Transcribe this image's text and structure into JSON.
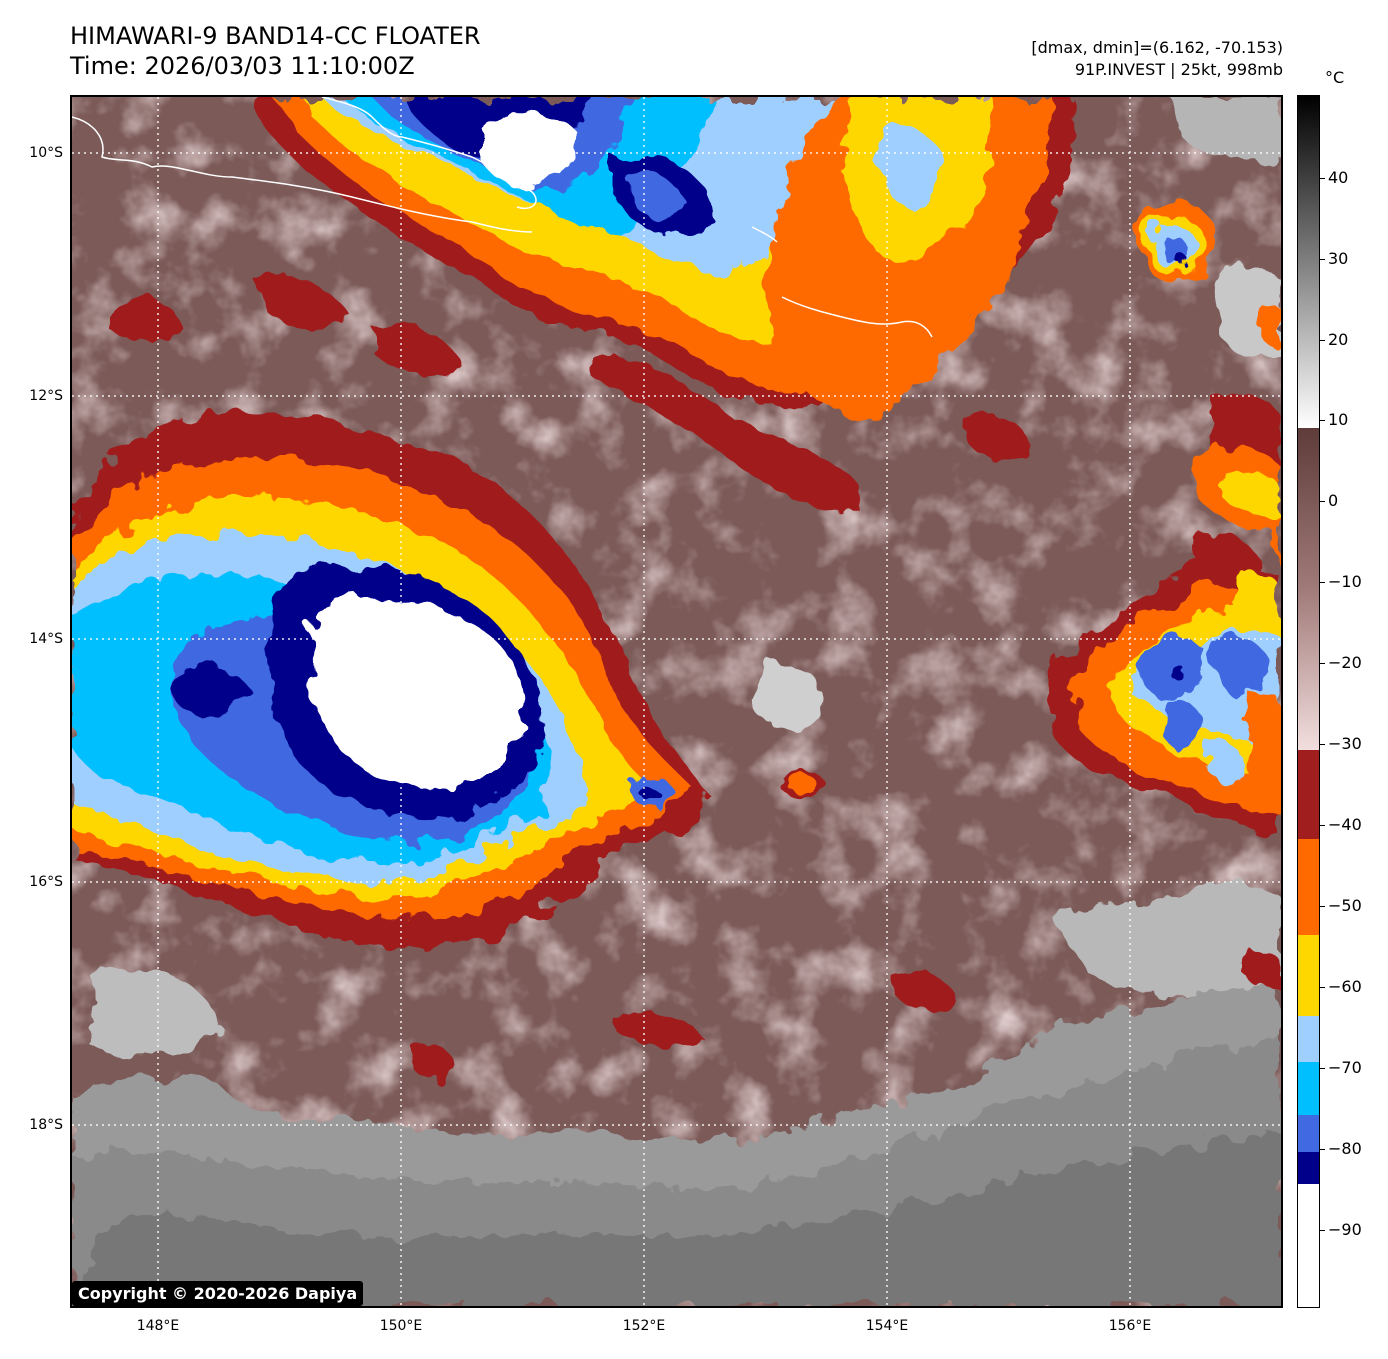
{
  "header": {
    "title": "HIMAWARI-9 BAND14-CC FLOATER",
    "time": "Time: 2026/03/03 11:10:00Z",
    "range": "[dmax, dmin]=(6.162, -70.153)",
    "storm": "91P.INVEST | 25kt, 998mb"
  },
  "map": {
    "lat_labels": [
      "10°S",
      "12°S",
      "14°S",
      "16°S",
      "18°S"
    ],
    "lon_labels": [
      "148°E",
      "150°E",
      "152°E",
      "154°E",
      "156°E"
    ],
    "copyright": "Copyright © 2020-2026 Dapiya",
    "colors": {
      "background_warm": "#7b5a58",
      "cloud_light": "#e8c8c6",
      "dark_red": "#a01e1e",
      "orange": "#ff6a00",
      "yellow": "#ffd700",
      "light_blue": "#9fcfff",
      "cyan": "#00bfff",
      "royal_blue": "#4169e1",
      "navy": "#00008b",
      "white_core": "#ffffff",
      "gray_warm": "#a6a6a6"
    }
  },
  "colorbar": {
    "unit": "°C",
    "labels": [
      "40",
      "30",
      "20",
      "10",
      "0",
      "−10",
      "−20",
      "−30",
      "−40",
      "−50",
      "−60",
      "−70",
      "−80",
      "−90"
    ]
  }
}
